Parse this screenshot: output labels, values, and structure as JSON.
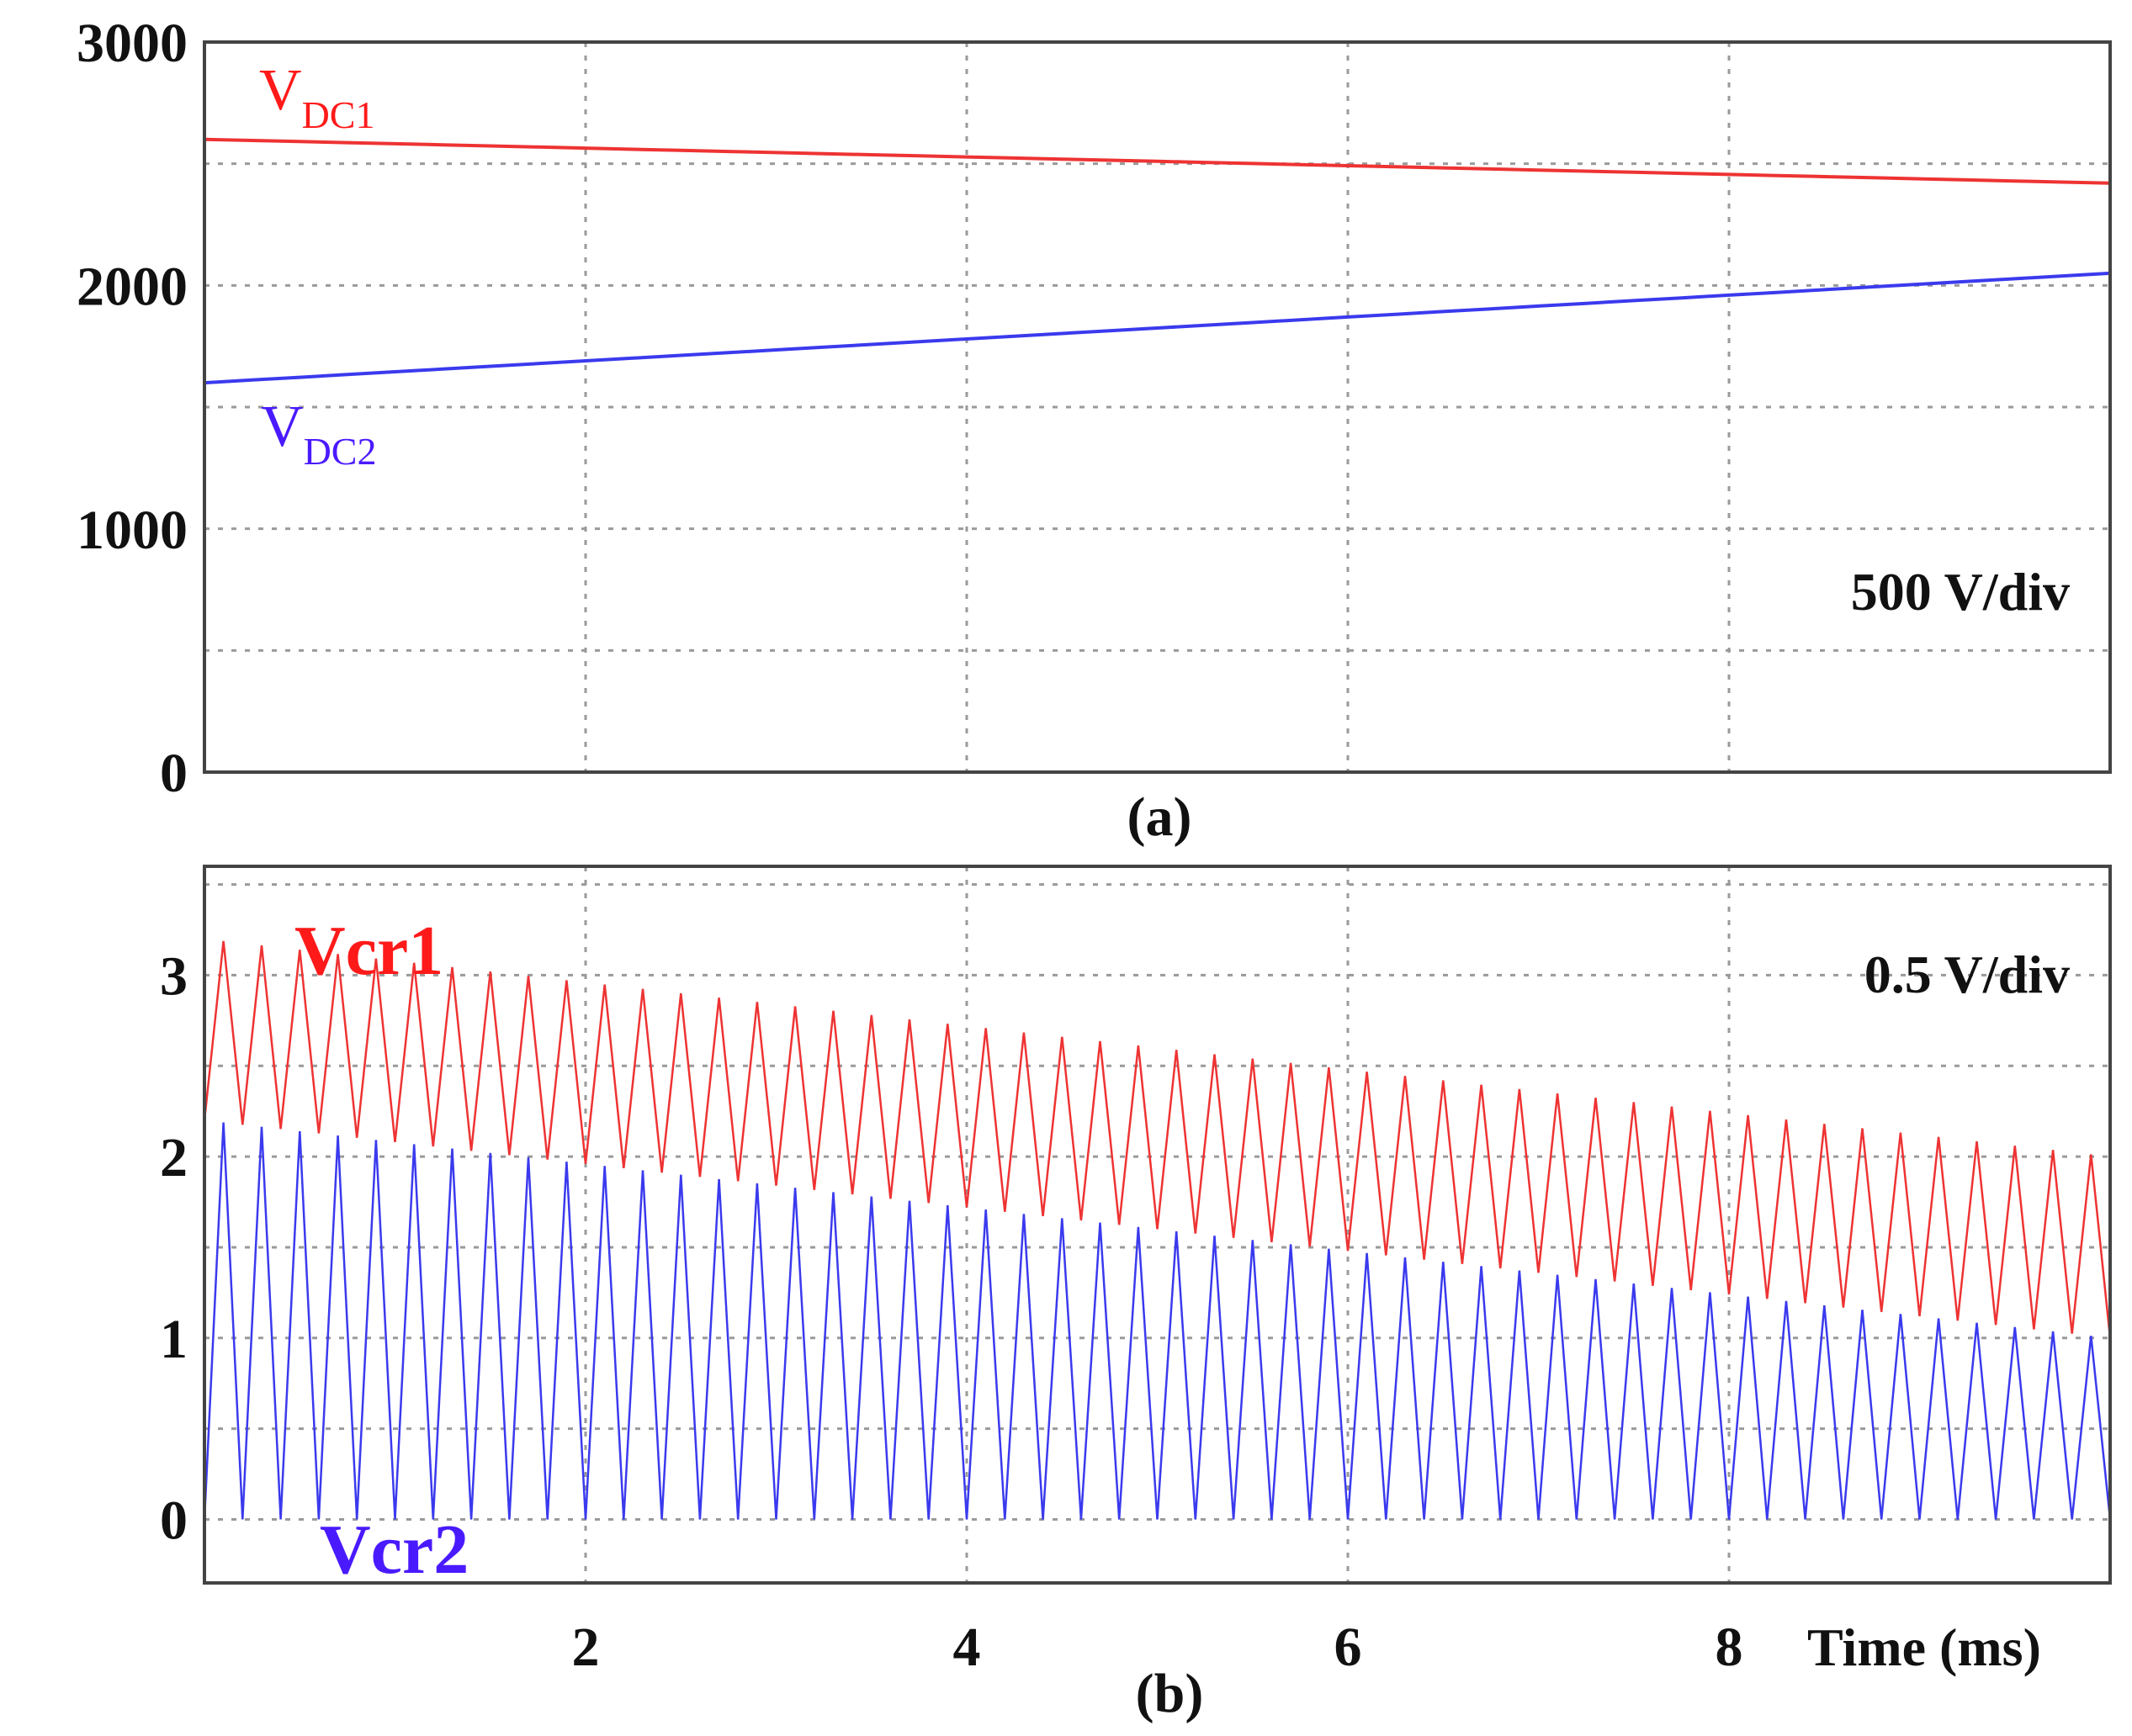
{
  "colors": {
    "red": "#ee3333",
    "blue": "#3a3aee",
    "red_label": "#ff1a1a",
    "blue_label": "#4a1aff",
    "grid": "#9a9a9a",
    "axis": "#444444",
    "text": "#111111"
  },
  "chart_data": [
    {
      "id": "a",
      "type": "line",
      "caption": "(a)",
      "scale_note": "500 V/div",
      "xlim": [
        0,
        10
      ],
      "ylim": [
        0,
        3000
      ],
      "x_gridlines": [
        2,
        4,
        6,
        8
      ],
      "y_gridlines": [
        500,
        1000,
        1500,
        2000,
        2500
      ],
      "yticks": [
        {
          "value": 0,
          "label": "0"
        },
        {
          "value": 1000,
          "label": "1000"
        },
        {
          "value": 2000,
          "label": "2000"
        },
        {
          "value": 3000,
          "label": "3000"
        }
      ],
      "series": [
        {
          "name": "V_DC1",
          "label_main": "V",
          "label_sub": "DC1",
          "color": "#ee3333",
          "x": [
            0,
            10
          ],
          "y": [
            2600,
            2420
          ]
        },
        {
          "name": "V_DC2",
          "label_main": "V",
          "label_sub": "DC2",
          "color": "#3a3aee",
          "x": [
            0,
            10
          ],
          "y": [
            1600,
            2050
          ]
        }
      ]
    },
    {
      "id": "b",
      "type": "line",
      "caption": "(b)",
      "scale_note": "0.5 V/div",
      "xlabel": "Time (ms)",
      "xlim": [
        0,
        10
      ],
      "ylim": [
        -0.35,
        3.6
      ],
      "x_gridlines": [
        2,
        4,
        6,
        8
      ],
      "y_gridlines": [
        0,
        0.5,
        1,
        1.5,
        2,
        2.5,
        3,
        3.5
      ],
      "xticks": [
        {
          "value": 2,
          "label": "2"
        },
        {
          "value": 4,
          "label": "4"
        },
        {
          "value": 6,
          "label": "6"
        },
        {
          "value": 8,
          "label": "8"
        }
      ],
      "yticks": [
        {
          "value": 0,
          "label": "0"
        },
        {
          "value": 1,
          "label": "1"
        },
        {
          "value": 2,
          "label": "2"
        },
        {
          "value": 3,
          "label": "3"
        }
      ],
      "carrier_period_ms": 0.2,
      "series": [
        {
          "name": "Vcr1",
          "label": "Vcr1",
          "color": "#ee3333",
          "band": "upper",
          "peak_start": 3.2,
          "peak_end": 2.0,
          "valley_start": 2.2,
          "valley_end": 1.0
        },
        {
          "name": "Vcr2",
          "label": "Vcr2",
          "color": "#3a3aee",
          "band": "lower",
          "peak_start": 2.2,
          "peak_end": 1.0,
          "valley_start": 0,
          "valley_end": 0
        }
      ]
    }
  ]
}
